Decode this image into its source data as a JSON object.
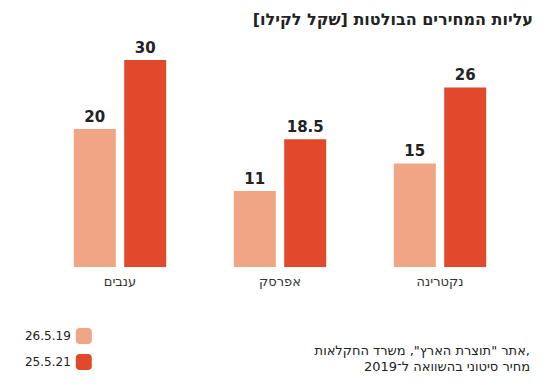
{
  "chart_data": {
    "type": "bar",
    "title": "עליות המחירים הבולטות [שקל לקילו]",
    "categories": [
      "ענבים",
      "אפרסק",
      "נקטרינה"
    ],
    "series": [
      {
        "name": "26.5.19",
        "color": "#f0a584",
        "values": [
          20,
          11,
          15
        ]
      },
      {
        "name": "25.5.21",
        "color": "#e2492b",
        "values": [
          30,
          18.5,
          26
        ]
      }
    ],
    "ylim": [
      0,
      30
    ],
    "tick_labels": "x",
    "grid": false,
    "legend": "lower left",
    "data_labels": true,
    "source": [
      "אתר \"תוצרת הארץ\", משרד החקלאות,",
      "מחיר סיטוני בהשוואה ל־2019"
    ]
  }
}
